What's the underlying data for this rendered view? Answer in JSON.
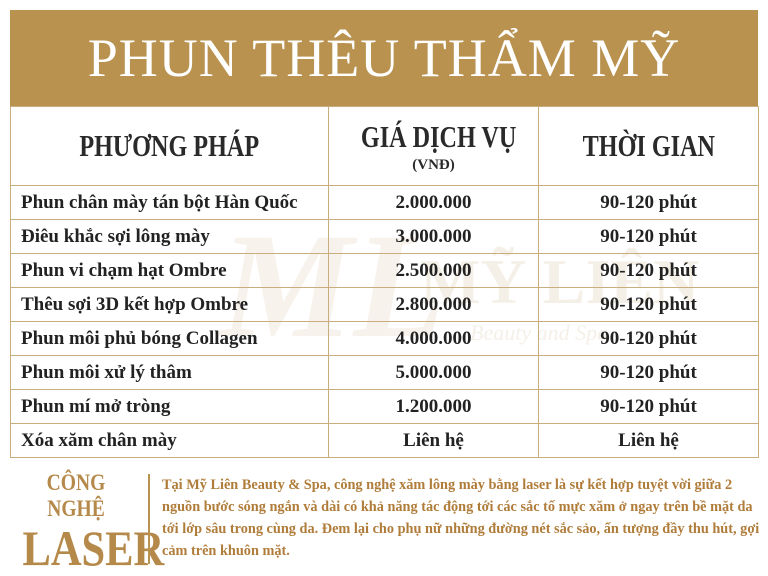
{
  "header": {
    "title": "PHUN THÊU THẨM MỸ"
  },
  "watermark": {
    "logo": "ML",
    "name": "MỸ LIÊN",
    "tagline": "Beauty and Spa"
  },
  "table": {
    "columns": [
      "PHƯƠNG PHÁP",
      "GIÁ DỊCH VỤ",
      "THỜI GIAN"
    ],
    "price_unit": "(VNĐ)",
    "rows": [
      [
        "Phun chân mày tán bột Hàn Quốc",
        "2.000.000",
        "90-120 phút"
      ],
      [
        "Điêu khắc sợi lông mày",
        "3.000.000",
        "90-120 phút"
      ],
      [
        "Phun vi chạm hạt Ombre",
        "2.500.000",
        "90-120 phút"
      ],
      [
        "Thêu sợi 3D kết hợp Ombre",
        "2.800.000",
        "90-120 phút"
      ],
      [
        "Phun môi phủ bóng Collagen",
        "4.000.000",
        "90-120 phút"
      ],
      [
        "Phun môi xử lý thâm",
        "5.000.000",
        "90-120 phút"
      ],
      [
        "Phun mí mở tròng",
        "1.200.000",
        "90-120 phút"
      ],
      [
        "Xóa xăm chân mày",
        "Liên hệ",
        "Liên hệ"
      ]
    ]
  },
  "footer": {
    "label_top": "CÔNG NGHỆ",
    "label_main": "LASER",
    "description": "Tại Mỹ Liên Beauty & Spa, công nghệ xăm lông mày bằng laser là sự kết hợp tuyệt vời giữa 2 nguồn bước sóng ngắn và dài có khả năng tác động tới các sắc tố mực xăm ở ngay trên bề mặt da tới lớp sâu trong cùng da. Đem lại cho phụ nữ những đường nét sắc sảo, ấn tượng đầy thu hút, gợi cảm trên khuôn mặt."
  }
}
